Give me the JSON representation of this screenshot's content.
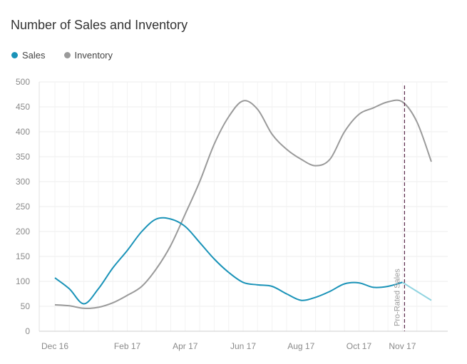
{
  "chart_data": {
    "type": "line",
    "title": "Number of Sales and Inventory",
    "legend_position": "top-left",
    "grid": true,
    "x_ticks": [
      "Dec 16",
      "Feb 17",
      "Apr 17",
      "Jun 17",
      "Aug 17",
      "Oct 17",
      "Nov 17"
    ],
    "y_ticks": [
      0,
      50,
      100,
      150,
      200,
      250,
      300,
      350,
      400,
      450,
      500
    ],
    "ylim": [
      0,
      500
    ],
    "series": [
      {
        "name": "Sales",
        "color": "#1a93b8",
        "pro_rated_color": "#8fd3e0",
        "points": [
          [
            "Dec 16",
            107
          ],
          [
            "",
            85
          ],
          [
            "",
            55
          ],
          [
            "",
            85
          ],
          [
            "",
            127
          ],
          [
            "Feb 17",
            162
          ],
          [
            "",
            200
          ],
          [
            "",
            225
          ],
          [
            "",
            225
          ],
          [
            "Apr 17",
            210
          ],
          [
            "",
            178
          ],
          [
            "",
            145
          ],
          [
            "",
            118
          ],
          [
            "Jun 17",
            98
          ],
          [
            "",
            93
          ],
          [
            "",
            90
          ],
          [
            "",
            75
          ],
          [
            "Aug 17",
            62
          ],
          [
            "",
            68
          ],
          [
            "",
            80
          ],
          [
            "",
            95
          ],
          [
            "Oct 17",
            97
          ],
          [
            "",
            88
          ],
          [
            "",
            90
          ],
          [
            "Nov 17",
            98
          ],
          [
            "",
            80
          ],
          [
            "",
            62
          ]
        ],
        "pro_rated_from_index": 24
      },
      {
        "name": "Inventory",
        "color": "#9a9a9a",
        "points": [
          [
            "Dec 16",
            53
          ],
          [
            "",
            51
          ],
          [
            "",
            46
          ],
          [
            "",
            48
          ],
          [
            "",
            57
          ],
          [
            "Feb 17",
            72
          ],
          [
            "",
            90
          ],
          [
            "",
            125
          ],
          [
            "",
            172
          ],
          [
            "Apr 17",
            235
          ],
          [
            "",
            300
          ],
          [
            "",
            375
          ],
          [
            "",
            430
          ],
          [
            "Jun 17",
            462
          ],
          [
            "",
            445
          ],
          [
            "",
            395
          ],
          [
            "",
            365
          ],
          [
            "Aug 17",
            345
          ],
          [
            "",
            332
          ],
          [
            "",
            345
          ],
          [
            "",
            400
          ],
          [
            "Oct 17",
            435
          ],
          [
            "",
            448
          ],
          [
            "",
            460
          ],
          [
            "Nov 17",
            460
          ],
          [
            "",
            420
          ],
          [
            "",
            340
          ]
        ]
      }
    ],
    "annotation": {
      "label": "Pro-Rated Sales",
      "at_index": 24,
      "line_color": "#5a2a4a"
    }
  }
}
